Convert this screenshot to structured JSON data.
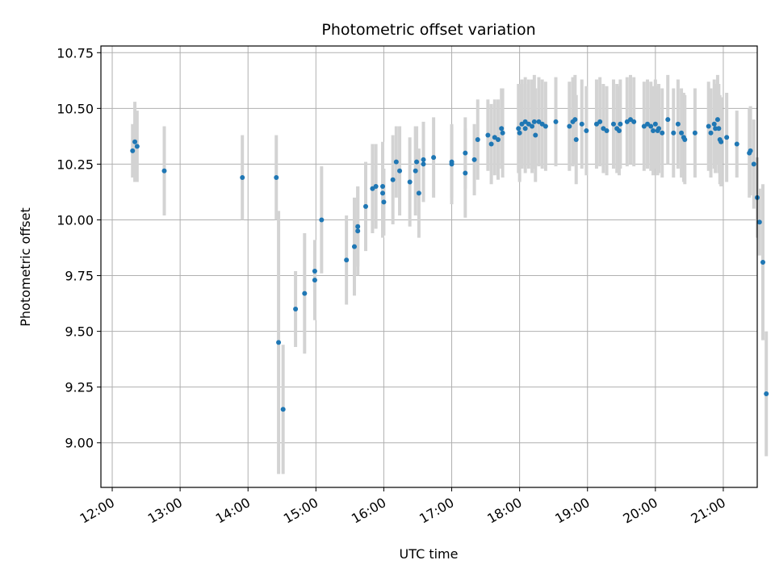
{
  "chart_data": {
    "type": "scatter",
    "title": "Photometric offset variation",
    "xlabel": "UTC time",
    "ylabel": "Photometric offset",
    "xlim": [
      "11:50",
      "21:30"
    ],
    "ylim": [
      8.8,
      10.78
    ],
    "grid": true,
    "x_ticks": [
      "12:00",
      "13:00",
      "14:00",
      "15:00",
      "16:00",
      "17:00",
      "18:00",
      "19:00",
      "20:00",
      "21:00"
    ],
    "y_ticks": [
      9.0,
      9.25,
      9.5,
      9.75,
      10.0,
      10.25,
      10.5,
      10.75
    ],
    "y_tick_labels": [
      "9.00",
      "9.25",
      "9.50",
      "9.75",
      "10.00",
      "10.25",
      "10.50",
      "10.75"
    ],
    "colors": {
      "point": "#1f77b4",
      "errorbar": "#d3d3d3",
      "grid": "#b0b0b0"
    },
    "series": [
      {
        "points": [
          {
            "x": "12:18",
            "y": 10.31,
            "err": 0.12
          },
          {
            "x": "12:20",
            "y": 10.35,
            "err": 0.18
          },
          {
            "x": "12:22",
            "y": 10.33,
            "err": 0.16
          },
          {
            "x": "12:46",
            "y": 10.22,
            "err": 0.2
          },
          {
            "x": "13:55",
            "y": 10.19,
            "err": 0.19
          },
          {
            "x": "14:25",
            "y": 10.19,
            "err": 0.19
          },
          {
            "x": "14:27",
            "y": 9.45,
            "err": 0.59
          },
          {
            "x": "14:31",
            "y": 9.15,
            "err": 0.29
          },
          {
            "x": "14:42",
            "y": 9.6,
            "err": 0.17
          },
          {
            "x": "14:50",
            "y": 9.67,
            "err": 0.27
          },
          {
            "x": "14:59",
            "y": 9.73,
            "err": 0.18
          },
          {
            "x": "14:59",
            "y": 9.77,
            "err": 0.09
          },
          {
            "x": "15:05",
            "y": 10.0,
            "err": 0.24
          },
          {
            "x": "15:27",
            "y": 9.82,
            "err": 0.2
          },
          {
            "x": "15:34",
            "y": 9.88,
            "err": 0.22
          },
          {
            "x": "15:37",
            "y": 9.95,
            "err": 0.2
          },
          {
            "x": "15:37",
            "y": 9.97,
            "err": 0.18
          },
          {
            "x": "15:44",
            "y": 10.06,
            "err": 0.2
          },
          {
            "x": "15:50",
            "y": 10.14,
            "err": 0.2
          },
          {
            "x": "15:53",
            "y": 10.15,
            "err": 0.19
          },
          {
            "x": "15:59",
            "y": 10.12,
            "err": 0.2
          },
          {
            "x": "15:59",
            "y": 10.15,
            "err": 0.2
          },
          {
            "x": "16:00",
            "y": 10.08,
            "err": 0.15
          },
          {
            "x": "16:08",
            "y": 10.18,
            "err": 0.2
          },
          {
            "x": "16:11",
            "y": 10.26,
            "err": 0.16
          },
          {
            "x": "16:14",
            "y": 10.22,
            "err": 0.2
          },
          {
            "x": "16:23",
            "y": 10.17,
            "err": 0.2
          },
          {
            "x": "16:28",
            "y": 10.22,
            "err": 0.2
          },
          {
            "x": "16:29",
            "y": 10.26,
            "err": 0.16
          },
          {
            "x": "16:31",
            "y": 10.12,
            "err": 0.2
          },
          {
            "x": "16:35",
            "y": 10.27,
            "err": 0.17
          },
          {
            "x": "16:35",
            "y": 10.25,
            "err": 0.17
          },
          {
            "x": "16:44",
            "y": 10.28,
            "err": 0.18
          },
          {
            "x": "17:00",
            "y": 10.25,
            "err": 0.18
          },
          {
            "x": "17:00",
            "y": 10.26,
            "err": 0.16
          },
          {
            "x": "17:12",
            "y": 10.21,
            "err": 0.2
          },
          {
            "x": "17:12",
            "y": 10.3,
            "err": 0.16
          },
          {
            "x": "17:20",
            "y": 10.27,
            "err": 0.16
          },
          {
            "x": "17:23",
            "y": 10.36,
            "err": 0.18
          },
          {
            "x": "17:32",
            "y": 10.38,
            "err": 0.16
          },
          {
            "x": "17:35",
            "y": 10.34,
            "err": 0.18
          },
          {
            "x": "17:38",
            "y": 10.37,
            "err": 0.17
          },
          {
            "x": "17:41",
            "y": 10.36,
            "err": 0.18
          },
          {
            "x": "17:44",
            "y": 10.41,
            "err": 0.18
          },
          {
            "x": "17:45",
            "y": 10.39,
            "err": 0.2
          },
          {
            "x": "17:59",
            "y": 10.41,
            "err": 0.2
          },
          {
            "x": "18:00",
            "y": 10.39,
            "err": 0.22
          },
          {
            "x": "18:02",
            "y": 10.43,
            "err": 0.2
          },
          {
            "x": "18:05",
            "y": 10.44,
            "err": 0.2
          },
          {
            "x": "18:05",
            "y": 10.41,
            "err": 0.2
          },
          {
            "x": "18:08",
            "y": 10.43,
            "err": 0.2
          },
          {
            "x": "18:11",
            "y": 10.42,
            "err": 0.21
          },
          {
            "x": "18:13",
            "y": 10.44,
            "err": 0.21
          },
          {
            "x": "18:14",
            "y": 10.38,
            "err": 0.21
          },
          {
            "x": "18:17",
            "y": 10.44,
            "err": 0.2
          },
          {
            "x": "18:20",
            "y": 10.43,
            "err": 0.2
          },
          {
            "x": "18:23",
            "y": 10.42,
            "err": 0.2
          },
          {
            "x": "18:32",
            "y": 10.44,
            "err": 0.2
          },
          {
            "x": "18:44",
            "y": 10.42,
            "err": 0.2
          },
          {
            "x": "18:47",
            "y": 10.44,
            "err": 0.2
          },
          {
            "x": "18:49",
            "y": 10.45,
            "err": 0.2
          },
          {
            "x": "18:50",
            "y": 10.36,
            "err": 0.2
          },
          {
            "x": "18:55",
            "y": 10.43,
            "err": 0.2
          },
          {
            "x": "18:59",
            "y": 10.4,
            "err": 0.2
          },
          {
            "x": "19:08",
            "y": 10.43,
            "err": 0.2
          },
          {
            "x": "19:11",
            "y": 10.44,
            "err": 0.2
          },
          {
            "x": "19:14",
            "y": 10.41,
            "err": 0.2
          },
          {
            "x": "19:17",
            "y": 10.4,
            "err": 0.2
          },
          {
            "x": "19:23",
            "y": 10.43,
            "err": 0.2
          },
          {
            "x": "19:26",
            "y": 10.41,
            "err": 0.2
          },
          {
            "x": "19:28",
            "y": 10.4,
            "err": 0.2
          },
          {
            "x": "19:29",
            "y": 10.43,
            "err": 0.2
          },
          {
            "x": "19:35",
            "y": 10.44,
            "err": 0.2
          },
          {
            "x": "19:38",
            "y": 10.45,
            "err": 0.2
          },
          {
            "x": "19:41",
            "y": 10.44,
            "err": 0.2
          },
          {
            "x": "19:50",
            "y": 10.42,
            "err": 0.2
          },
          {
            "x": "19:53",
            "y": 10.43,
            "err": 0.2
          },
          {
            "x": "19:56",
            "y": 10.42,
            "err": 0.2
          },
          {
            "x": "19:58",
            "y": 10.4,
            "err": 0.2
          },
          {
            "x": "20:00",
            "y": 10.43,
            "err": 0.2
          },
          {
            "x": "20:02",
            "y": 10.4,
            "err": 0.2
          },
          {
            "x": "20:03",
            "y": 10.41,
            "err": 0.2
          },
          {
            "x": "20:06",
            "y": 10.39,
            "err": 0.2
          },
          {
            "x": "20:11",
            "y": 10.45,
            "err": 0.2
          },
          {
            "x": "20:16",
            "y": 10.39,
            "err": 0.2
          },
          {
            "x": "20:20",
            "y": 10.43,
            "err": 0.2
          },
          {
            "x": "20:23",
            "y": 10.39,
            "err": 0.2
          },
          {
            "x": "20:25",
            "y": 10.37,
            "err": 0.2
          },
          {
            "x": "20:26",
            "y": 10.36,
            "err": 0.2
          },
          {
            "x": "20:35",
            "y": 10.39,
            "err": 0.2
          },
          {
            "x": "20:47",
            "y": 10.42,
            "err": 0.2
          },
          {
            "x": "20:49",
            "y": 10.39,
            "err": 0.2
          },
          {
            "x": "20:52",
            "y": 10.43,
            "err": 0.2
          },
          {
            "x": "20:53",
            "y": 10.41,
            "err": 0.2
          },
          {
            "x": "20:55",
            "y": 10.45,
            "err": 0.2
          },
          {
            "x": "20:56",
            "y": 10.41,
            "err": 0.2
          },
          {
            "x": "20:57",
            "y": 10.36,
            "err": 0.2
          },
          {
            "x": "20:58",
            "y": 10.35,
            "err": 0.2
          },
          {
            "x": "21:03",
            "y": 10.37,
            "err": 0.2
          },
          {
            "x": "21:12",
            "y": 10.34,
            "err": 0.15
          },
          {
            "x": "21:23",
            "y": 10.3,
            "err": 0.2
          },
          {
            "x": "21:24",
            "y": 10.31,
            "err": 0.2
          },
          {
            "x": "21:27",
            "y": 10.25,
            "err": 0.2
          },
          {
            "x": "21:30",
            "y": 10.1,
            "err": 0.18
          },
          {
            "x": "21:32",
            "y": 9.99,
            "err": 0.15
          },
          {
            "x": "21:35",
            "y": 9.81,
            "err": 0.35
          },
          {
            "x": "21:38",
            "y": 9.22,
            "err": 0.28
          }
        ]
      }
    ]
  }
}
